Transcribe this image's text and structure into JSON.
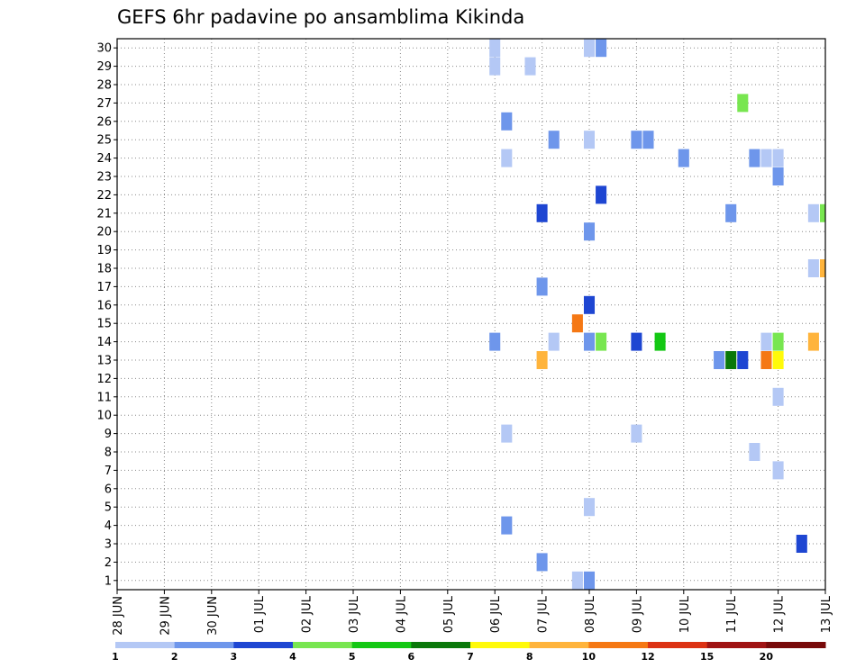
{
  "chart_data": {
    "type": "heatmap",
    "title": "GEFS 6hr padavine po ansamblima Kikinda",
    "xlabel": "",
    "ylabel": "",
    "x_ticks": [
      "28 JUN",
      "29 JUN",
      "30 JUN",
      "01 JUL",
      "02 JUL",
      "03 JUL",
      "04 JUL",
      "05 JUL",
      "06 JUL",
      "07 JUL",
      "08 JUL",
      "09 JUL",
      "10 JUL",
      "11 JUL",
      "12 JUL",
      "13 JUL"
    ],
    "y_ticks": [
      "1",
      "2",
      "3",
      "4",
      "5",
      "6",
      "7",
      "8",
      "9",
      "10",
      "11",
      "12",
      "13",
      "14",
      "15",
      "16",
      "17",
      "18",
      "19",
      "20",
      "21",
      "22",
      "23",
      "24",
      "25",
      "26",
      "27",
      "28",
      "29",
      "30"
    ],
    "xlim": [
      0,
      15
    ],
    "ylim": [
      0.5,
      30.5
    ],
    "grid": true,
    "color_scale": {
      "levels": [
        "1",
        "2",
        "3",
        "4",
        "5",
        "6",
        "7",
        "8",
        "10",
        "12",
        "15",
        "20"
      ],
      "colors": [
        "#b4c8f5",
        "#6e96eb",
        "#1e46d2",
        "#78e650",
        "#14c814",
        "#0a780a",
        "#fffa0a",
        "#ffb43c",
        "#f57814",
        "#dc3214",
        "#a01414",
        "#780a0a"
      ]
    },
    "cells": [
      {
        "x": 8.0,
        "y": 30,
        "v": 1
      },
      {
        "x": 8.0,
        "y": 29,
        "v": 1
      },
      {
        "x": 8.75,
        "y": 29,
        "v": 1
      },
      {
        "x": 10.0,
        "y": 30,
        "v": 1
      },
      {
        "x": 10.25,
        "y": 30,
        "v": 2
      },
      {
        "x": 13.25,
        "y": 27,
        "v": 4
      },
      {
        "x": 8.25,
        "y": 26,
        "v": 2
      },
      {
        "x": 9.25,
        "y": 25,
        "v": 2
      },
      {
        "x": 10.0,
        "y": 25,
        "v": 1
      },
      {
        "x": 11.0,
        "y": 25,
        "v": 2
      },
      {
        "x": 11.25,
        "y": 25,
        "v": 2
      },
      {
        "x": 8.25,
        "y": 24,
        "v": 1
      },
      {
        "x": 12.0,
        "y": 24,
        "v": 2
      },
      {
        "x": 13.5,
        "y": 24,
        "v": 2
      },
      {
        "x": 13.75,
        "y": 24,
        "v": 1
      },
      {
        "x": 14.0,
        "y": 24,
        "v": 1
      },
      {
        "x": 14.0,
        "y": 23,
        "v": 2
      },
      {
        "x": 10.25,
        "y": 22,
        "v": 3
      },
      {
        "x": 9.0,
        "y": 21,
        "v": 3
      },
      {
        "x": 13.0,
        "y": 21,
        "v": 2
      },
      {
        "x": 14.75,
        "y": 21,
        "v": 1
      },
      {
        "x": 15.0,
        "y": 21,
        "v": 4
      },
      {
        "x": 10.0,
        "y": 20,
        "v": 2
      },
      {
        "x": 14.75,
        "y": 18,
        "v": 1
      },
      {
        "x": 15.0,
        "y": 18,
        "v": 8
      },
      {
        "x": 9.0,
        "y": 17,
        "v": 2
      },
      {
        "x": 10.0,
        "y": 16,
        "v": 3
      },
      {
        "x": 9.75,
        "y": 15,
        "v": 10
      },
      {
        "x": 8.0,
        "y": 14,
        "v": 2
      },
      {
        "x": 9.25,
        "y": 14,
        "v": 1
      },
      {
        "x": 10.0,
        "y": 14,
        "v": 2
      },
      {
        "x": 10.25,
        "y": 14,
        "v": 4
      },
      {
        "x": 11.0,
        "y": 14,
        "v": 3
      },
      {
        "x": 11.5,
        "y": 14,
        "v": 5
      },
      {
        "x": 13.75,
        "y": 14,
        "v": 1
      },
      {
        "x": 14.0,
        "y": 14,
        "v": 4
      },
      {
        "x": 14.75,
        "y": 14,
        "v": 8
      },
      {
        "x": 9.0,
        "y": 13,
        "v": 8
      },
      {
        "x": 12.75,
        "y": 13,
        "v": 2
      },
      {
        "x": 13.0,
        "y": 13,
        "v": 6
      },
      {
        "x": 13.25,
        "y": 13,
        "v": 3
      },
      {
        "x": 13.75,
        "y": 13,
        "v": 10
      },
      {
        "x": 14.0,
        "y": 13,
        "v": 7
      },
      {
        "x": 14.0,
        "y": 11,
        "v": 1
      },
      {
        "x": 8.25,
        "y": 9,
        "v": 1
      },
      {
        "x": 11.0,
        "y": 9,
        "v": 1
      },
      {
        "x": 13.5,
        "y": 8,
        "v": 1
      },
      {
        "x": 14.0,
        "y": 7,
        "v": 1
      },
      {
        "x": 10.0,
        "y": 5,
        "v": 1
      },
      {
        "x": 8.25,
        "y": 4,
        "v": 2
      },
      {
        "x": 14.5,
        "y": 3,
        "v": 3
      },
      {
        "x": 9.0,
        "y": 2,
        "v": 2
      },
      {
        "x": 9.75,
        "y": 1,
        "v": 1
      },
      {
        "x": 10.0,
        "y": 1,
        "v": 2
      }
    ]
  }
}
